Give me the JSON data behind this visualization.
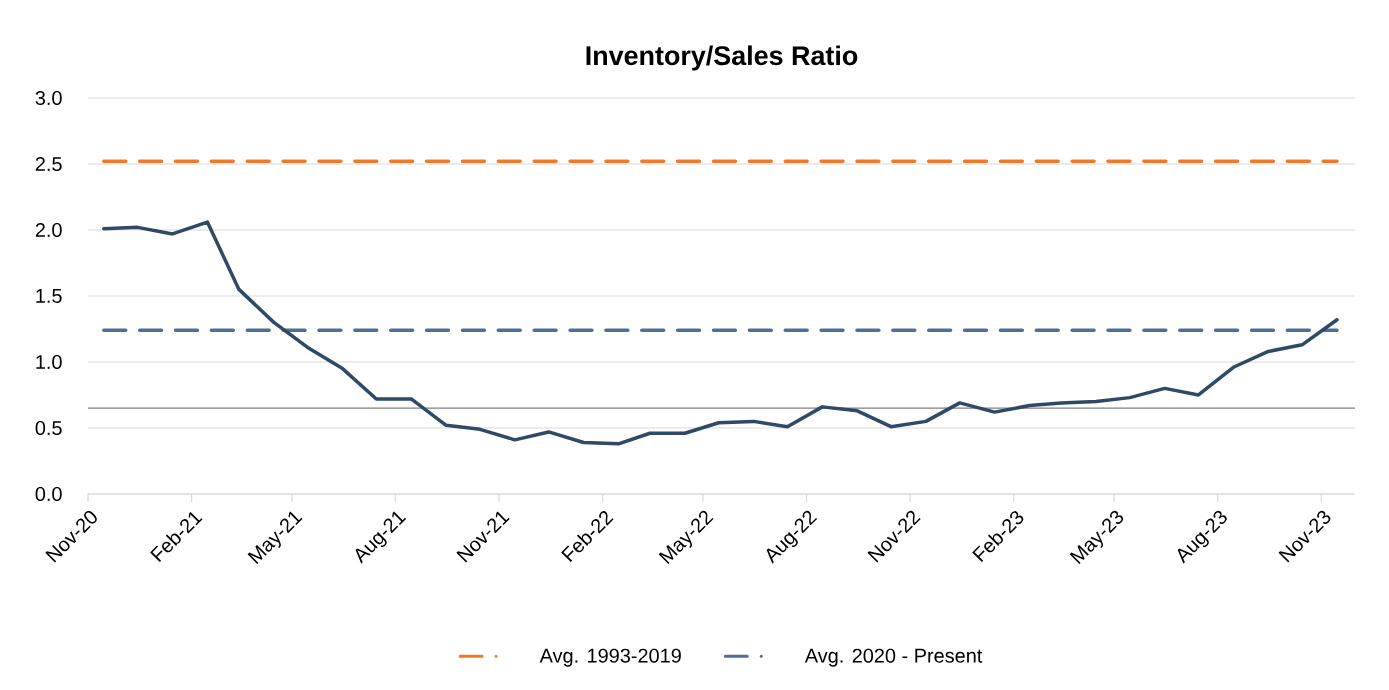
{
  "chart_data": {
    "type": "line",
    "title": "Inventory/Sales Ratio",
    "x": [
      "2020-11-15",
      "2020-12-15",
      "2021-01-15",
      "2021-02-15",
      "2021-03-15",
      "2021-04-15",
      "2021-05-15",
      "2021-06-15",
      "2021-07-15",
      "2021-08-15",
      "2021-09-15",
      "2021-10-15",
      "2021-11-15",
      "2021-12-15",
      "2022-01-15",
      "2022-02-15",
      "2022-03-15",
      "2022-04-15",
      "2022-05-15",
      "2022-06-15",
      "2022-07-15",
      "2022-08-15",
      "2022-09-15",
      "2022-10-15",
      "2022-11-15",
      "2022-12-15",
      "2023-01-15",
      "2023-02-15",
      "2023-03-15",
      "2023-04-15",
      "2023-05-15",
      "2023-06-15",
      "2023-07-15",
      "2023-08-15",
      "2023-09-15",
      "2023-10-15",
      "2023-11-15"
    ],
    "series": [
      {
        "color": "#f07a2a",
        "line_style": "dashed",
        "name": "Avg. 1993-2019",
        "values": [
          2.52,
          2.52,
          2.52,
          2.52,
          2.52,
          2.52,
          2.52,
          2.52,
          2.52,
          2.52,
          2.52,
          2.52,
          2.52,
          2.52,
          2.52,
          2.52,
          2.52,
          2.52,
          2.52,
          2.52,
          2.52,
          2.52,
          2.52,
          2.52,
          2.52,
          2.52,
          2.52,
          2.52,
          2.52,
          2.52,
          2.52,
          2.52,
          2.52,
          2.52,
          2.52,
          2.52,
          2.52
        ]
      },
      {
        "color": "#4f6f96",
        "line_style": "dashed",
        "name": "Avg. 2020 - Present",
        "values": [
          1.24,
          1.24,
          1.24,
          1.24,
          1.24,
          1.24,
          1.24,
          1.24,
          1.24,
          1.24,
          1.24,
          1.24,
          1.24,
          1.24,
          1.24,
          1.24,
          1.24,
          1.24,
          1.24,
          1.24,
          1.24,
          1.24,
          1.24,
          1.24,
          1.24,
          1.24,
          1.24,
          1.24,
          1.24,
          1.24,
          1.24,
          1.24,
          1.24,
          1.24,
          1.24,
          1.24,
          1.24
        ]
      },
      {
        "color": "#2e4a66",
        "line_style": "solid",
        "values": [
          2.01,
          2.02,
          1.97,
          2.06,
          1.55,
          1.3,
          1.11,
          0.95,
          0.72,
          0.72,
          0.52,
          0.49,
          0.41,
          0.47,
          0.39,
          0.38,
          0.46,
          0.46,
          0.54,
          0.55,
          0.51,
          0.66,
          0.63,
          0.51,
          0.55,
          0.69,
          0.62,
          0.67,
          0.69,
          0.7,
          0.73,
          0.8,
          0.75,
          0.96,
          1.08,
          1.13,
          1.32
        ]
      }
    ],
    "xlim": [
      "2020-11-01",
      "2023-12-01"
    ],
    "xticks": [
      {
        "value": "2020-11-01",
        "label": "Nov-20"
      },
      {
        "value": "2021-02-01",
        "label": "Feb-21"
      },
      {
        "value": "2021-05-01",
        "label": "May-21"
      },
      {
        "value": "2021-08-01",
        "label": "Aug-21"
      },
      {
        "value": "2021-11-01",
        "label": "Nov-21"
      },
      {
        "value": "2022-02-01",
        "label": "Feb-22"
      },
      {
        "value": "2022-05-01",
        "label": "May-22"
      },
      {
        "value": "2022-08-01",
        "label": "Aug-22"
      },
      {
        "value": "2022-11-01",
        "label": "Nov-22"
      },
      {
        "value": "2023-02-01",
        "label": "Feb-23"
      },
      {
        "value": "2023-05-01",
        "label": "May-23"
      },
      {
        "value": "2023-08-01",
        "label": "Aug-23"
      },
      {
        "value": "2023-11-01",
        "label": "Nov-23"
      }
    ],
    "ylim": [
      0,
      3
    ],
    "yticks": [
      {
        "value": 0,
        "label": "0.0"
      },
      {
        "value": 0.5,
        "label": "0.5"
      },
      {
        "value": 1,
        "label": "1.0"
      },
      {
        "value": 1.5,
        "label": "1.5"
      },
      {
        "value": 2,
        "label": "2.0"
      },
      {
        "value": 2.5,
        "label": "2.5"
      },
      {
        "value": 3,
        "label": "3.0"
      }
    ],
    "ref_lines": [
      {
        "axis": "y",
        "value": 0.65,
        "color": "#808080"
      }
    ],
    "grid": "y",
    "legend": "bottom",
    "marker": "none"
  }
}
